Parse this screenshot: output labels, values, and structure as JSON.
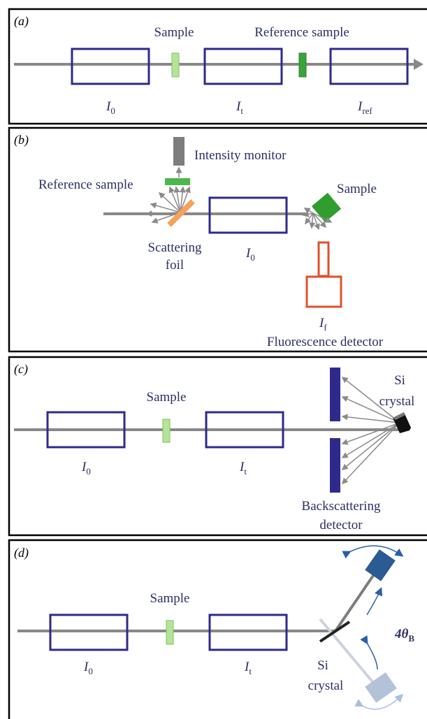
{
  "panels": [
    {
      "label": "(a)",
      "labels": [
        "Sample",
        "Reference sample"
      ],
      "intensities": [
        {
          "symbol": "I",
          "subscript": "0"
        },
        {
          "symbol": "I",
          "subscript": "t"
        },
        {
          "symbol": "I",
          "subscript": "ref"
        }
      ]
    },
    {
      "label": "(b)",
      "labels": [
        "Intensity monitor",
        "Reference sample",
        "Sample",
        "Fluorescence detector"
      ],
      "scattering_foil": [
        "Scattering",
        "foil"
      ],
      "intensities": [
        {
          "symbol": "I",
          "subscript": "0"
        },
        {
          "symbol": "I",
          "subscript": "f"
        }
      ]
    },
    {
      "label": "(c)",
      "labels": [
        "Sample"
      ],
      "crystal": [
        "Si",
        "crystal"
      ],
      "detector": [
        "Backscattering",
        "detector"
      ],
      "intensities": [
        {
          "symbol": "I",
          "subscript": "0"
        },
        {
          "symbol": "I",
          "subscript": "t"
        }
      ]
    },
    {
      "label": "(d)",
      "labels": [
        "Sample"
      ],
      "crystal": [
        "Si",
        "crystal"
      ],
      "angle": {
        "symbol": "4θ",
        "subscript": "B"
      },
      "intensities": [
        {
          "symbol": "I",
          "subscript": "0"
        },
        {
          "symbol": "I",
          "subscript": "t"
        }
      ]
    }
  ]
}
